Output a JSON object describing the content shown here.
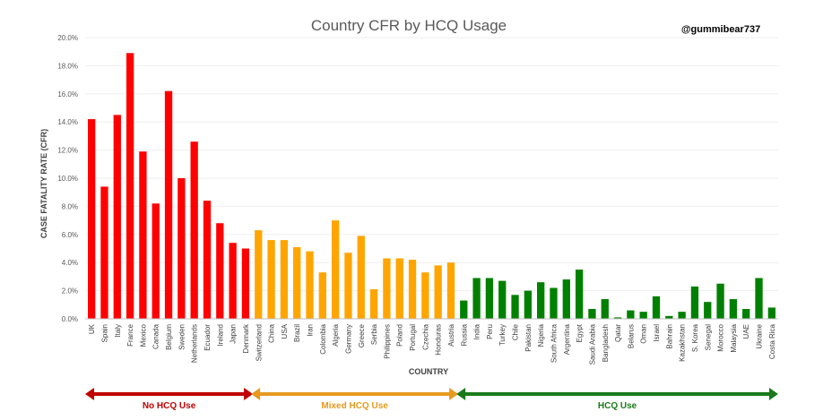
{
  "chart_data": {
    "type": "bar",
    "title": "Country CFR by HCQ Usage",
    "attribution": "@gummibear737",
    "xlabel": "COUNTRY",
    "ylabel": "CASE FATALITY RATE (CFR)",
    "ylim": [
      0,
      20
    ],
    "yticks": [
      "0.0%",
      "2.0%",
      "4.0%",
      "6.0%",
      "8.0%",
      "10.0%",
      "12.0%",
      "14.0%",
      "16.0%",
      "18.0%",
      "20.0%"
    ],
    "grid": true,
    "legend": "none",
    "categories": [
      "UK",
      "Spain",
      "Italy",
      "France",
      "Mexico",
      "Canada",
      "Belgium",
      "Sweden",
      "Netherlands",
      "Ecuador",
      "Ireland",
      "Japan",
      "Denmark",
      "Switzerland",
      "China",
      "USA",
      "Brazil",
      "Iran",
      "Colombia",
      "Algeria",
      "Germany",
      "Greece",
      "Serbia",
      "Philippines",
      "Poland",
      "Portugal",
      "Czechia",
      "Honduras",
      "Austria",
      "Russia",
      "India",
      "Peru",
      "Turkey",
      "Chile",
      "Pakistan",
      "Nigeria",
      "South Africa",
      "Argentina",
      "Egypt",
      "Saudi Arabia",
      "Bangladesh",
      "Qatar",
      "Belarus",
      "Oman",
      "Israel",
      "Bahrain",
      "Kazakhstan",
      "S. Korea",
      "Senegal",
      "Morocco",
      "Malaysia",
      "UAE",
      "Ukraine",
      "Costa Rica"
    ],
    "values": [
      14.2,
      9.4,
      14.5,
      18.9,
      11.9,
      8.2,
      16.2,
      10.0,
      12.6,
      8.4,
      6.8,
      5.4,
      5.0,
      6.3,
      5.6,
      5.6,
      5.1,
      4.8,
      3.3,
      7.0,
      4.7,
      5.9,
      2.1,
      4.3,
      4.3,
      4.2,
      3.3,
      3.8,
      4.0,
      1.3,
      2.9,
      2.9,
      2.7,
      1.7,
      2.0,
      2.6,
      2.2,
      2.8,
      3.5,
      0.7,
      1.4,
      0.1,
      0.6,
      0.5,
      1.6,
      0.2,
      0.5,
      2.3,
      1.2,
      2.5,
      1.4,
      0.7,
      2.9,
      0.8
    ],
    "groups": [
      {
        "name": "No HCQ Use",
        "start": 0,
        "end": 12,
        "color": "#ff0000",
        "arrow_color": "#c00000",
        "text_color": "#c00000"
      },
      {
        "name": "Mixed HCQ Use",
        "start": 13,
        "end": 28,
        "color": "#ffa500",
        "arrow_color": "#e69a1f",
        "text_color": "#e69a1f"
      },
      {
        "name": "HCQ Use",
        "start": 29,
        "end": 53,
        "color": "#008000",
        "arrow_color": "#1a7a1a",
        "text_color": "#1a7a1a"
      }
    ]
  }
}
